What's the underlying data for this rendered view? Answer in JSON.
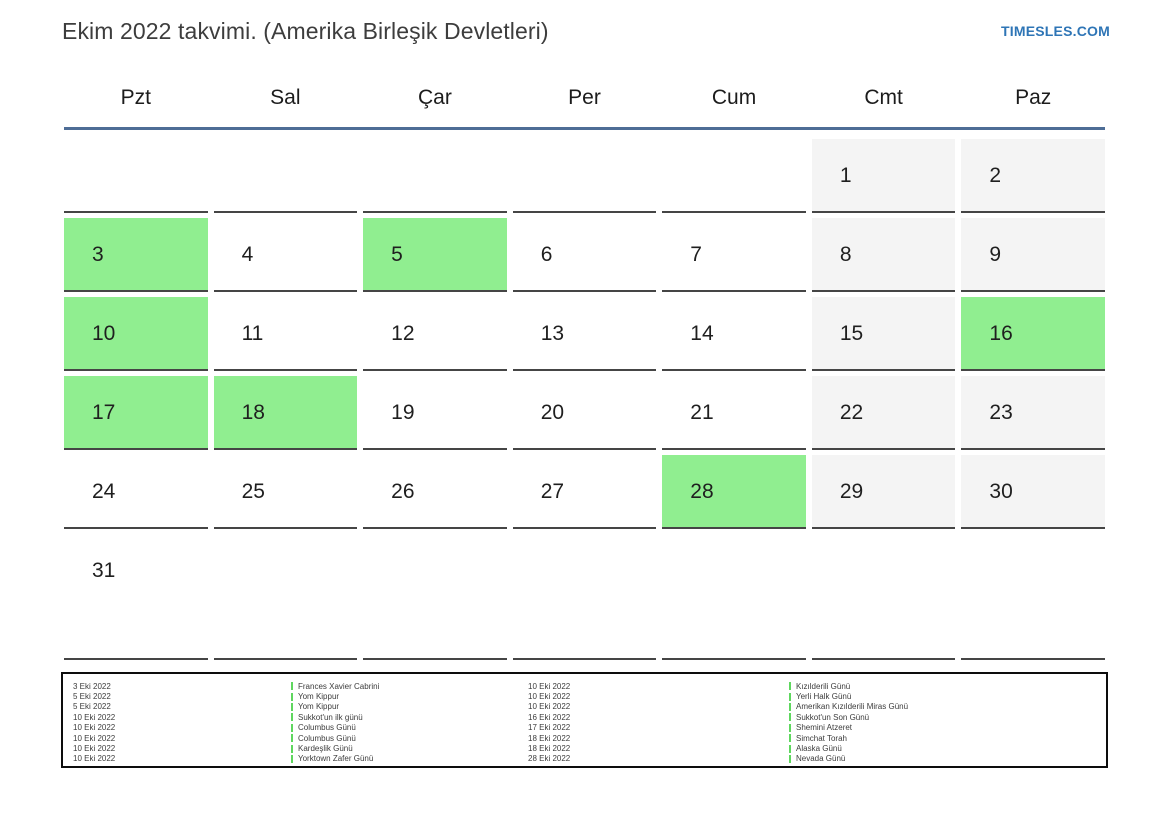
{
  "header": {
    "title": "Ekim 2022 takvimi. (Amerika Birleşik Devletleri)",
    "logo": "TIMESLES.COM"
  },
  "weekdays": [
    "Pzt",
    "Sal",
    "Çar",
    "Per",
    "Cum",
    "Cmt",
    "Paz"
  ],
  "calendar": {
    "rows": [
      [
        {
          "day": "",
          "type": "blank"
        },
        {
          "day": "",
          "type": "blank"
        },
        {
          "day": "",
          "type": "blank"
        },
        {
          "day": "",
          "type": "blank"
        },
        {
          "day": "",
          "type": "blank"
        },
        {
          "day": "1",
          "type": "weekend"
        },
        {
          "day": "2",
          "type": "weekend"
        }
      ],
      [
        {
          "day": "3",
          "type": "holiday"
        },
        {
          "day": "4",
          "type": "normal"
        },
        {
          "day": "5",
          "type": "holiday"
        },
        {
          "day": "6",
          "type": "normal"
        },
        {
          "day": "7",
          "type": "normal"
        },
        {
          "day": "8",
          "type": "weekend"
        },
        {
          "day": "9",
          "type": "weekend"
        }
      ],
      [
        {
          "day": "10",
          "type": "holiday"
        },
        {
          "day": "11",
          "type": "normal"
        },
        {
          "day": "12",
          "type": "normal"
        },
        {
          "day": "13",
          "type": "normal"
        },
        {
          "day": "14",
          "type": "normal"
        },
        {
          "day": "15",
          "type": "weekend"
        },
        {
          "day": "16",
          "type": "holiday"
        }
      ],
      [
        {
          "day": "17",
          "type": "holiday"
        },
        {
          "day": "18",
          "type": "holiday"
        },
        {
          "day": "19",
          "type": "normal"
        },
        {
          "day": "20",
          "type": "normal"
        },
        {
          "day": "21",
          "type": "normal"
        },
        {
          "day": "22",
          "type": "weekend"
        },
        {
          "day": "23",
          "type": "weekend"
        }
      ],
      [
        {
          "day": "24",
          "type": "normal"
        },
        {
          "day": "25",
          "type": "normal"
        },
        {
          "day": "26",
          "type": "normal"
        },
        {
          "day": "27",
          "type": "normal"
        },
        {
          "day": "28",
          "type": "holiday"
        },
        {
          "day": "29",
          "type": "weekend"
        },
        {
          "day": "30",
          "type": "weekend"
        }
      ],
      [
        {
          "day": "31",
          "type": "normal"
        },
        {
          "day": "",
          "type": "blank"
        },
        {
          "day": "",
          "type": "blank"
        },
        {
          "day": "",
          "type": "blank"
        },
        {
          "day": "",
          "type": "blank"
        },
        {
          "day": "",
          "type": "blank"
        },
        {
          "day": "",
          "type": "blank"
        }
      ]
    ]
  },
  "legend": {
    "left": [
      {
        "date": "3 Eki 2022",
        "name": "Frances Xavier Cabrini"
      },
      {
        "date": "5 Eki 2022",
        "name": "Yom Kippur"
      },
      {
        "date": "5 Eki 2022",
        "name": "Yom Kippur"
      },
      {
        "date": "10 Eki 2022",
        "name": "Sukkot'un ilk günü"
      },
      {
        "date": "10 Eki 2022",
        "name": "Columbus Günü"
      },
      {
        "date": "10 Eki 2022",
        "name": "Columbus Günü"
      },
      {
        "date": "10 Eki 2022",
        "name": "Kardeşlik Günü"
      },
      {
        "date": "10 Eki 2022",
        "name": "Yorktown Zafer Günü"
      }
    ],
    "right": [
      {
        "date": "10 Eki 2022",
        "name": "Kızılderili Günü"
      },
      {
        "date": "10 Eki 2022",
        "name": "Yerli Halk Günü"
      },
      {
        "date": "10 Eki 2022",
        "name": "Amerikan Kızılderili Miras Günü"
      },
      {
        "date": "16 Eki 2022",
        "name": "Sukkot'un Son Günü"
      },
      {
        "date": "17 Eki 2022",
        "name": "Shemini Atzeret"
      },
      {
        "date": "18 Eki 2022",
        "name": "Simchat Torah"
      },
      {
        "date": "18 Eki 2022",
        "name": "Alaska Günü"
      },
      {
        "date": "28 Eki 2022",
        "name": "Nevada Günü"
      }
    ]
  },
  "colors": {
    "holiday": "#90ee90",
    "weekend": "#f4f4f4",
    "divider": "#4e6d96",
    "marker": "#5fd75f",
    "logo": "#2e75b6"
  }
}
